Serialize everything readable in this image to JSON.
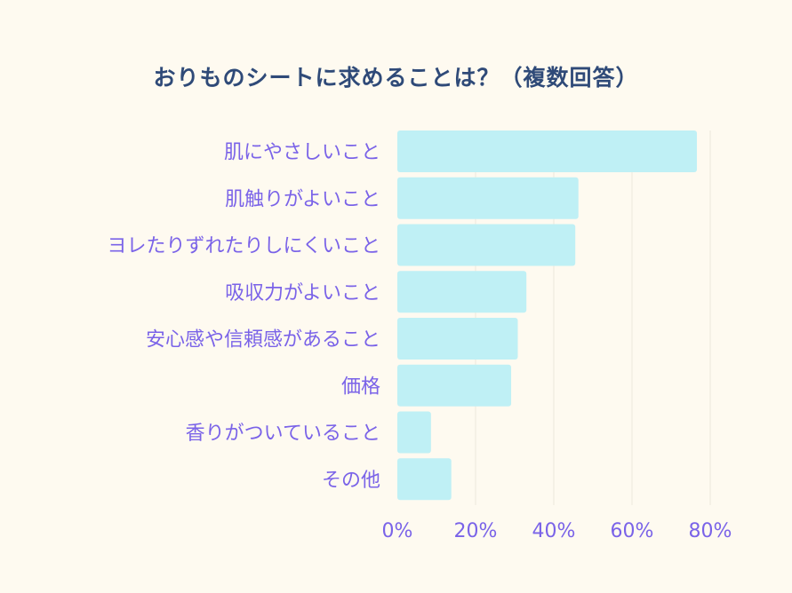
{
  "chart_data": {
    "type": "bar",
    "orientation": "horizontal",
    "title": "おりものシートに求めることは？（複数回答）",
    "categories": [
      "肌にやさしいこと",
      "肌触りがよいこと",
      "ヨレたりずれたりしにくいこと",
      "吸収力がよいこと",
      "安心感や信頼感があること",
      "価格",
      "香りがついていること",
      "その他"
    ],
    "values": [
      76.6,
      46.3,
      45.5,
      33.0,
      30.8,
      29.1,
      8.6,
      13.8
    ],
    "xlabel": "",
    "ylabel": "",
    "xlim": [
      0,
      80
    ],
    "xticks": [
      0,
      20,
      40,
      60,
      80
    ],
    "xtick_labels": [
      "0%",
      "20%",
      "40%",
      "60%",
      "80%"
    ],
    "grid": true,
    "legend": "none",
    "colors": {
      "bar": "#bff0f5",
      "label": "#7a63e8",
      "title": "#2f4a78",
      "grid": "#ece8dc",
      "background": "#fefaf0"
    }
  }
}
